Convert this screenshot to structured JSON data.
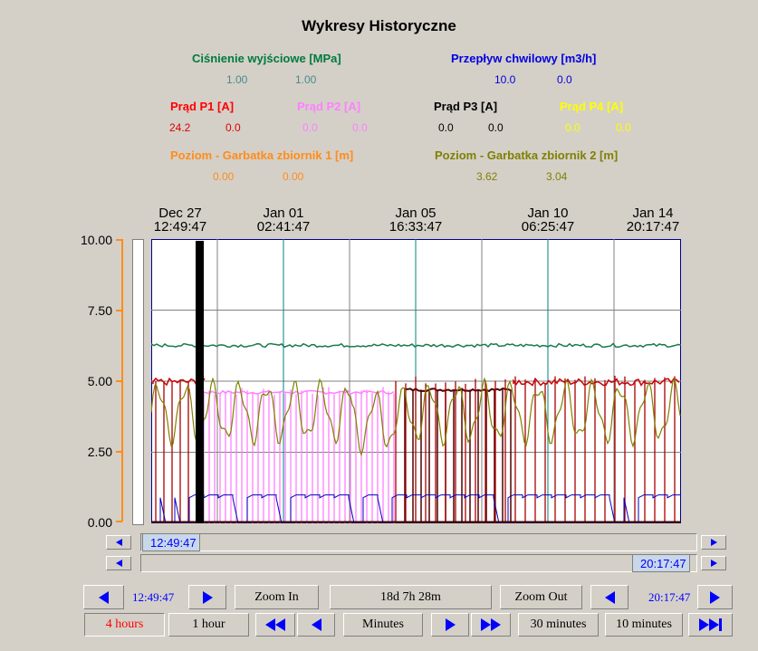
{
  "title": "Wykresy Historyczne",
  "legend": [
    {
      "label": "Ciśnienie wyjściowe [MPa]",
      "color": "#007a3d",
      "v1": "1.00",
      "v2": "1.00",
      "vcolor": "#4a8a8a"
    },
    {
      "label": "Przepływ chwilowy [m3/h]",
      "color": "#0000e0",
      "v1": "10.0",
      "v2": "0.0",
      "vcolor": "#0000e0"
    },
    {
      "label": "Prąd P1 [A]",
      "color": "#ff0000",
      "v1": "24.2",
      "v2": "0.0",
      "vcolor": "#e00000"
    },
    {
      "label": "Prąd P2 [A]",
      "color": "#ff80ff",
      "v1": "0.0",
      "v2": "0.0",
      "vcolor": "#ff80ff"
    },
    {
      "label": "Prąd P3 [A]",
      "color": "#000000",
      "v1": "0.0",
      "v2": "0.0",
      "vcolor": "#000000"
    },
    {
      "label": "Prąd P4 [A]",
      "color": "#ffff00",
      "v1": "0.0",
      "v2": "0.0",
      "vcolor": "#ffff00"
    },
    {
      "label": "Poziom - Garbatka zbiornik 1 [m]",
      "color": "#ff8c1a",
      "v1": "0.00",
      "v2": "0.00",
      "vcolor": "#ff8c1a"
    },
    {
      "label": "Poziom - Garbatka zbiornik 2 [m]",
      "color": "#808000",
      "v1": "3.62",
      "v2": "3.04",
      "vcolor": "#808000"
    }
  ],
  "xaxis": [
    {
      "date": "Dec 27",
      "time": "12:49:47"
    },
    {
      "date": "Jan 01",
      "time": "02:41:47"
    },
    {
      "date": "Jan 05",
      "time": "16:33:47"
    },
    {
      "date": "Jan 10",
      "time": "06:25:47"
    },
    {
      "date": "Jan 14",
      "time": "20:17:47"
    }
  ],
  "yaxis": [
    "10.00",
    "7.50",
    "5.00",
    "2.50",
    "0.00"
  ],
  "chart_data": {
    "type": "line",
    "title": "Wykresy Historyczne",
    "xlabel": "",
    "ylabel": "",
    "ylim": [
      0,
      10
    ],
    "x_ticks": [
      "Dec 27 12:49:47",
      "Jan 01 02:41:47",
      "Jan 05 16:33:47",
      "Jan 10 06:25:47",
      "Jan 14 20:17:47"
    ],
    "series": [
      {
        "name": "Ciśnienie wyjściowe [MPa]",
        "color": "#1a7a4a",
        "approx_level": 6.25
      },
      {
        "name": "Przepływ chwilowy [m3/h]",
        "color": "#0000c0",
        "approx_level": 1.0
      },
      {
        "name": "Prąd P1 [A]",
        "color": "#cc0000",
        "approx_level": 5.0
      },
      {
        "name": "Prąd P2 [A]",
        "color": "#ff80ff",
        "approx_level": 4.6
      },
      {
        "name": "Prąd P3 [A]",
        "color": "#500000",
        "approx_level": 4.7
      },
      {
        "name": "Poziom - Garbatka zbiornik 2 [m]",
        "color": "#808000",
        "approx_range": [
          2.5,
          5.3
        ]
      }
    ]
  },
  "scroll": {
    "start": "12:49:47",
    "end": "20:17:47"
  },
  "controls": {
    "start_time": "12:49:47",
    "end_time": "20:17:47",
    "zoom_in": "Zoom In",
    "span": "18d 7h 28m",
    "zoom_out": "Zoom Out",
    "r4h": "4 hours",
    "r1h": "1 hour",
    "minutes": "Minutes",
    "r30": "30 minutes",
    "r10": "10 minutes"
  }
}
